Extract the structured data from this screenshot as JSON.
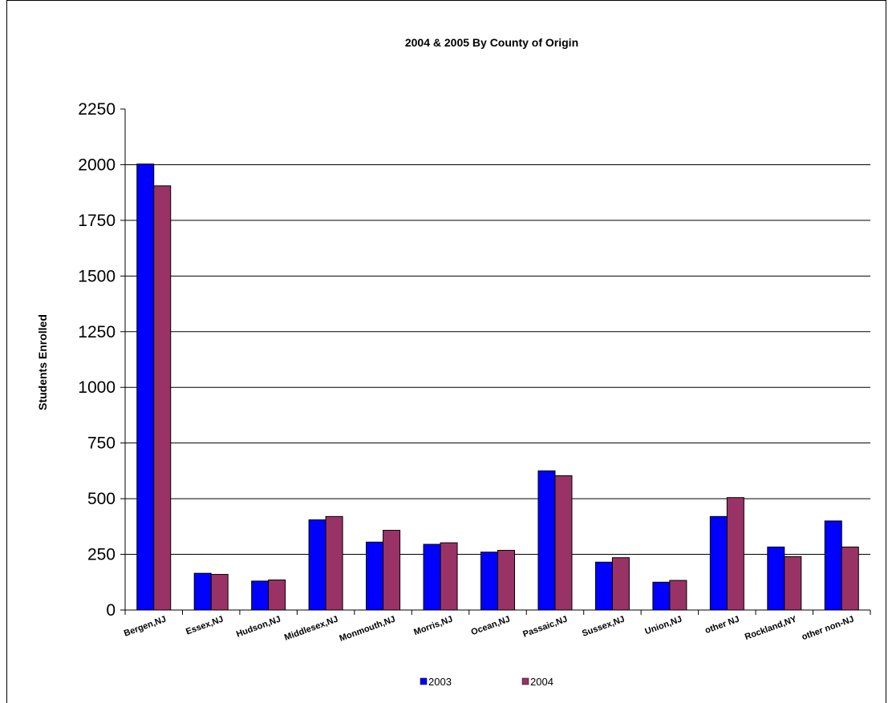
{
  "chart_data": {
    "type": "bar",
    "title": "2004 & 2005 By County of Origin",
    "xlabel": "",
    "ylabel": "Students Enrolled",
    "ylim": [
      0,
      2250
    ],
    "yticks": [
      0,
      250,
      500,
      750,
      1000,
      1250,
      1500,
      1750,
      2000,
      2250
    ],
    "grid": true,
    "legend_position": "bottom",
    "categories": [
      "Bergen,NJ",
      "Essex,NJ",
      "Hudson,NJ",
      "Middlesex,NJ",
      "Monmouth,NJ",
      "Morris,NJ",
      "Ocean,NJ",
      "Passaic,NJ",
      "Sussex,NJ",
      "Union,NJ",
      "other NJ",
      "Rockland,NY",
      "other non-NJ"
    ],
    "series": [
      {
        "name": "2003",
        "color": "#0000FF",
        "values": [
          2003,
          165,
          130,
          405,
          305,
          295,
          260,
          625,
          215,
          125,
          420,
          283,
          400
        ]
      },
      {
        "name": "2004",
        "color": "#993366",
        "values": [
          1905,
          160,
          135,
          420,
          358,
          302,
          268,
          603,
          235,
          133,
          505,
          240,
          283
        ]
      }
    ]
  }
}
